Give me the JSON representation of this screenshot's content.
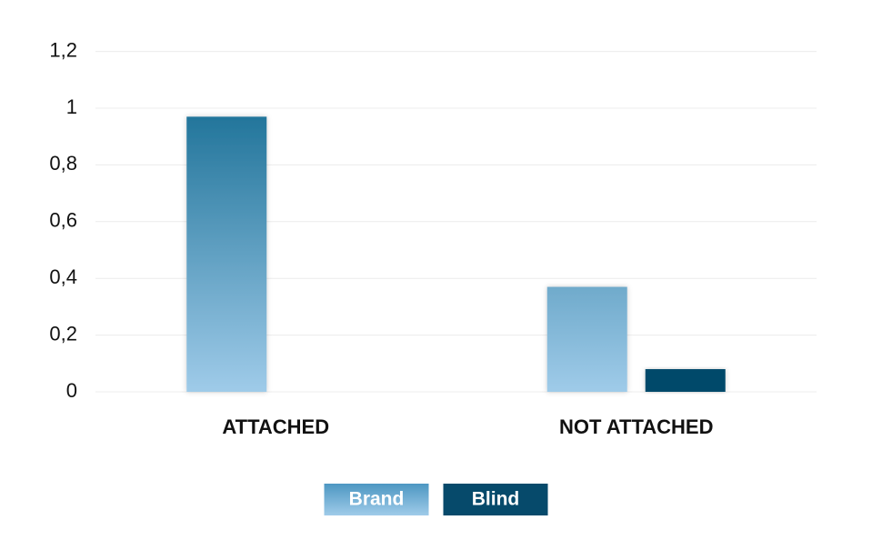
{
  "chart_data": {
    "type": "bar",
    "categories": [
      "ATTACHED",
      "NOT ATTACHED"
    ],
    "series": [
      {
        "name": "Brand",
        "color": "#1f7399",
        "values": [
          0.97,
          0.37
        ]
      },
      {
        "name": "Blind",
        "color": "#064a6b",
        "values": [
          0,
          0.08
        ]
      }
    ],
    "ylim": [
      0,
      1.2
    ],
    "yticks": [
      0,
      {
        "value": 0.2,
        "label": "0,2"
      },
      {
        "value": 0.4,
        "label": "0,4"
      },
      {
        "value": 0.6,
        "label": "0,6"
      },
      {
        "value": 0.8,
        "label": "0,8"
      },
      1,
      {
        "value": 1.2,
        "label": "1,2"
      }
    ],
    "grid": true,
    "legend": "bottom"
  }
}
